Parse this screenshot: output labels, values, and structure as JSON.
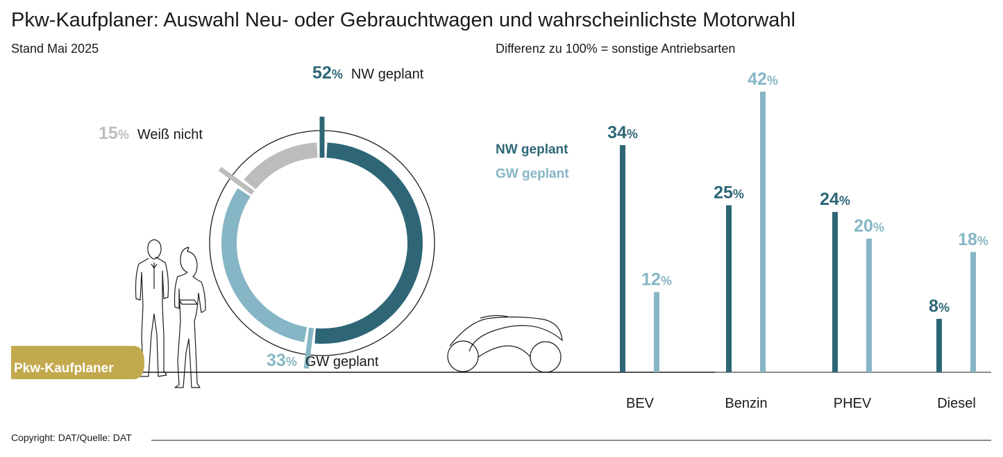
{
  "title": "Pkw-Kaufplaner: Auswahl Neu- oder Gebrauchtwagen und wahrscheinlichste Motorwahl",
  "subtitle": "Stand Mai 2025",
  "note": "Differenz zu 100% = sonstige Antriebsarten",
  "copyright": "Copyright: DAT/Quelle: DAT",
  "badge": "Pkw-Kaufplaner",
  "colors": {
    "nw": "#2e6676",
    "gw": "#86b6c5",
    "unknown": "#bcbcbc",
    "badge": "#c3a94d",
    "line": "#1a1a1a"
  },
  "chart_data": [
    {
      "type": "pie",
      "slices": [
        {
          "label": "NW geplant",
          "value": 52,
          "display": "52",
          "color": "#2e6676"
        },
        {
          "label": "GW geplant",
          "value": 33,
          "display": "33",
          "color": "#86b6c5"
        },
        {
          "label": "Weiß nicht",
          "value": 15,
          "display": "15",
          "color": "#bcbcbc"
        }
      ],
      "unit": "%"
    },
    {
      "type": "bar",
      "categories": [
        "BEV",
        "Benzin",
        "PHEV",
        "Diesel"
      ],
      "series": [
        {
          "name": "NW geplant",
          "values": [
            34,
            25,
            24,
            8
          ],
          "color": "#2e6676"
        },
        {
          "name": "GW geplant",
          "values": [
            12,
            42,
            20,
            18
          ],
          "color": "#86b6c5"
        }
      ],
      "unit": "%",
      "ylim": [
        0,
        42
      ]
    }
  ]
}
